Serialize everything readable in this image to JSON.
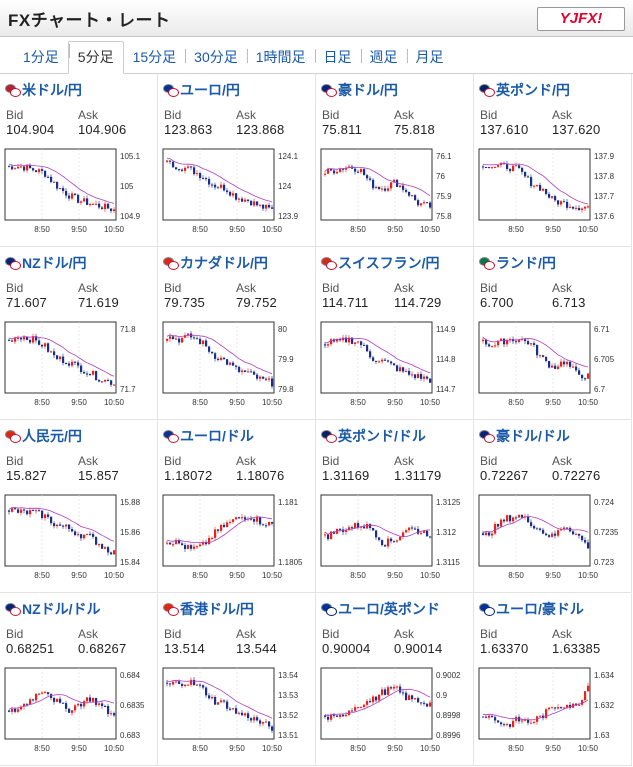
{
  "header": {
    "title": "FXチャート・レート",
    "logo": "YJFX!"
  },
  "tabs": [
    "1分足",
    "5分足",
    "15分足",
    "30分足",
    "1時間足",
    "日足",
    "週足",
    "月足"
  ],
  "active_tab": 1,
  "labels": {
    "bid": "Bid",
    "ask": "Ask"
  },
  "x_ticks": [
    "8:50",
    "9:50",
    "10:50"
  ],
  "colors": {
    "up": "#e8241a",
    "down": "#1a2e8c",
    "ma": "#b03cc0",
    "link": "#1a5aa8"
  },
  "pairs": [
    {
      "name": "米ドル/円",
      "bid": "104.904",
      "ask": "104.906",
      "flags": [
        "#b22234",
        "#c8102e"
      ],
      "y_ticks": [
        "105.1",
        "105",
        "104.9"
      ],
      "pattern": [
        0.8,
        0.8,
        0.75,
        0.7,
        0.5,
        0.35,
        0.25,
        0.2,
        0.15,
        0.1
      ]
    },
    {
      "name": "ユーロ/円",
      "bid": "123.863",
      "ask": "123.868",
      "flags": [
        "#003399",
        "#c8102e"
      ],
      "y_ticks": [
        "124.1",
        "124",
        "123.9"
      ],
      "pattern": [
        0.85,
        0.8,
        0.75,
        0.65,
        0.5,
        0.45,
        0.3,
        0.25,
        0.15,
        0.1
      ]
    },
    {
      "name": "豪ドル/円",
      "bid": "75.811",
      "ask": "75.818",
      "flags": [
        "#00247d",
        "#c8102e"
      ],
      "y_ticks": [
        "76.1",
        "76",
        "75.9",
        "75.8"
      ],
      "pattern": [
        0.7,
        0.75,
        0.8,
        0.75,
        0.5,
        0.45,
        0.55,
        0.4,
        0.2,
        0.15
      ]
    },
    {
      "name": "英ポンド/円",
      "bid": "137.610",
      "ask": "137.620",
      "flags": [
        "#012169",
        "#c8102e"
      ],
      "y_ticks": [
        "137.9",
        "137.8",
        "137.7",
        "137.6"
      ],
      "pattern": [
        0.85,
        0.8,
        0.8,
        0.75,
        0.55,
        0.45,
        0.25,
        0.2,
        0.15,
        0.15
      ]
    },
    {
      "name": "NZドル/円",
      "bid": "71.607",
      "ask": "71.619",
      "flags": [
        "#00247d",
        "#c8102e"
      ],
      "y_ticks": [
        "71.8",
        "71.7"
      ],
      "pattern": [
        0.8,
        0.85,
        0.8,
        0.7,
        0.5,
        0.45,
        0.35,
        0.25,
        0.15,
        0.1
      ]
    },
    {
      "name": "カナダドル/円",
      "bid": "79.735",
      "ask": "79.752",
      "flags": [
        "#d52b1e",
        "#c8102e"
      ],
      "y_ticks": [
        "80",
        "79.9",
        "79.8"
      ],
      "pattern": [
        0.85,
        0.8,
        0.85,
        0.75,
        0.55,
        0.45,
        0.3,
        0.25,
        0.15,
        0.1
      ]
    },
    {
      "name": "スイスフラン/円",
      "bid": "114.711",
      "ask": "114.729",
      "flags": [
        "#d52b1e",
        "#c8102e"
      ],
      "y_ticks": [
        "114.9",
        "114.8",
        "114.7"
      ],
      "pattern": [
        0.75,
        0.75,
        0.8,
        0.75,
        0.5,
        0.45,
        0.35,
        0.25,
        0.2,
        0.15
      ]
    },
    {
      "name": "ランド/円",
      "bid": "6.700",
      "ask": "6.713",
      "flags": [
        "#007a4d",
        "#c8102e"
      ],
      "y_ticks": [
        "6.71",
        "6.705",
        "6.7"
      ],
      "pattern": [
        0.75,
        0.7,
        0.8,
        0.8,
        0.75,
        0.5,
        0.35,
        0.45,
        0.25,
        0.2
      ]
    },
    {
      "name": "人民元/円",
      "bid": "15.827",
      "ask": "15.857",
      "flags": [
        "#de2910",
        "#c8102e"
      ],
      "y_ticks": [
        "15.88",
        "15.86",
        "15.84"
      ],
      "pattern": [
        0.85,
        0.8,
        0.8,
        0.75,
        0.6,
        0.55,
        0.45,
        0.4,
        0.25,
        0.15
      ]
    },
    {
      "name": "ユーロ/ドル",
      "bid": "1.18072",
      "ask": "1.18076",
      "flags": [
        "#003399",
        "#b22234"
      ],
      "y_ticks": [
        "1.181",
        "1.1805"
      ],
      "pattern": [
        0.35,
        0.3,
        0.2,
        0.25,
        0.45,
        0.6,
        0.7,
        0.75,
        0.65,
        0.6
      ]
    },
    {
      "name": "英ポンド/ドル",
      "bid": "1.31169",
      "ask": "1.31179",
      "flags": [
        "#012169",
        "#b22234"
      ],
      "y_ticks": [
        "1.3125",
        "1.312",
        "1.3115"
      ],
      "pattern": [
        0.4,
        0.5,
        0.55,
        0.6,
        0.55,
        0.3,
        0.35,
        0.55,
        0.5,
        0.45
      ]
    },
    {
      "name": "豪ドル/ドル",
      "bid": "0.72267",
      "ask": "0.72276",
      "flags": [
        "#00247d",
        "#b22234"
      ],
      "y_ticks": [
        "0.724",
        "0.7235",
        "0.723"
      ],
      "pattern": [
        0.4,
        0.55,
        0.7,
        0.75,
        0.65,
        0.5,
        0.4,
        0.6,
        0.45,
        0.25
      ]
    },
    {
      "name": "NZドル/ドル",
      "bid": "0.68251",
      "ask": "0.68267",
      "flags": [
        "#00247d",
        "#b22234"
      ],
      "y_ticks": [
        "0.684",
        "0.6835",
        "0.683"
      ],
      "pattern": [
        0.35,
        0.45,
        0.6,
        0.75,
        0.55,
        0.4,
        0.5,
        0.6,
        0.45,
        0.3
      ]
    },
    {
      "name": "香港ドル/円",
      "bid": "13.514",
      "ask": "13.544",
      "flags": [
        "#de2910",
        "#c8102e"
      ],
      "y_ticks": [
        "13.54",
        "13.53",
        "13.52",
        "13.51"
      ],
      "pattern": [
        0.8,
        0.85,
        0.85,
        0.75,
        0.55,
        0.5,
        0.35,
        0.3,
        0.2,
        0.12
      ]
    },
    {
      "name": "ユーロ/英ポンド",
      "bid": "0.90004",
      "ask": "0.90014",
      "flags": [
        "#003399",
        "#012169"
      ],
      "y_ticks": [
        "0.9002",
        "0.9",
        "0.8998",
        "0.8996"
      ],
      "pattern": [
        0.3,
        0.25,
        0.4,
        0.5,
        0.55,
        0.7,
        0.75,
        0.6,
        0.55,
        0.5
      ]
    },
    {
      "name": "ユーロ/豪ドル",
      "bid": "1.63370",
      "ask": "1.63385",
      "flags": [
        "#003399",
        "#00247d"
      ],
      "y_ticks": [
        "1.634",
        "1.632",
        "1.63"
      ],
      "pattern": [
        0.35,
        0.25,
        0.15,
        0.25,
        0.2,
        0.3,
        0.45,
        0.5,
        0.45,
        0.8
      ]
    }
  ]
}
